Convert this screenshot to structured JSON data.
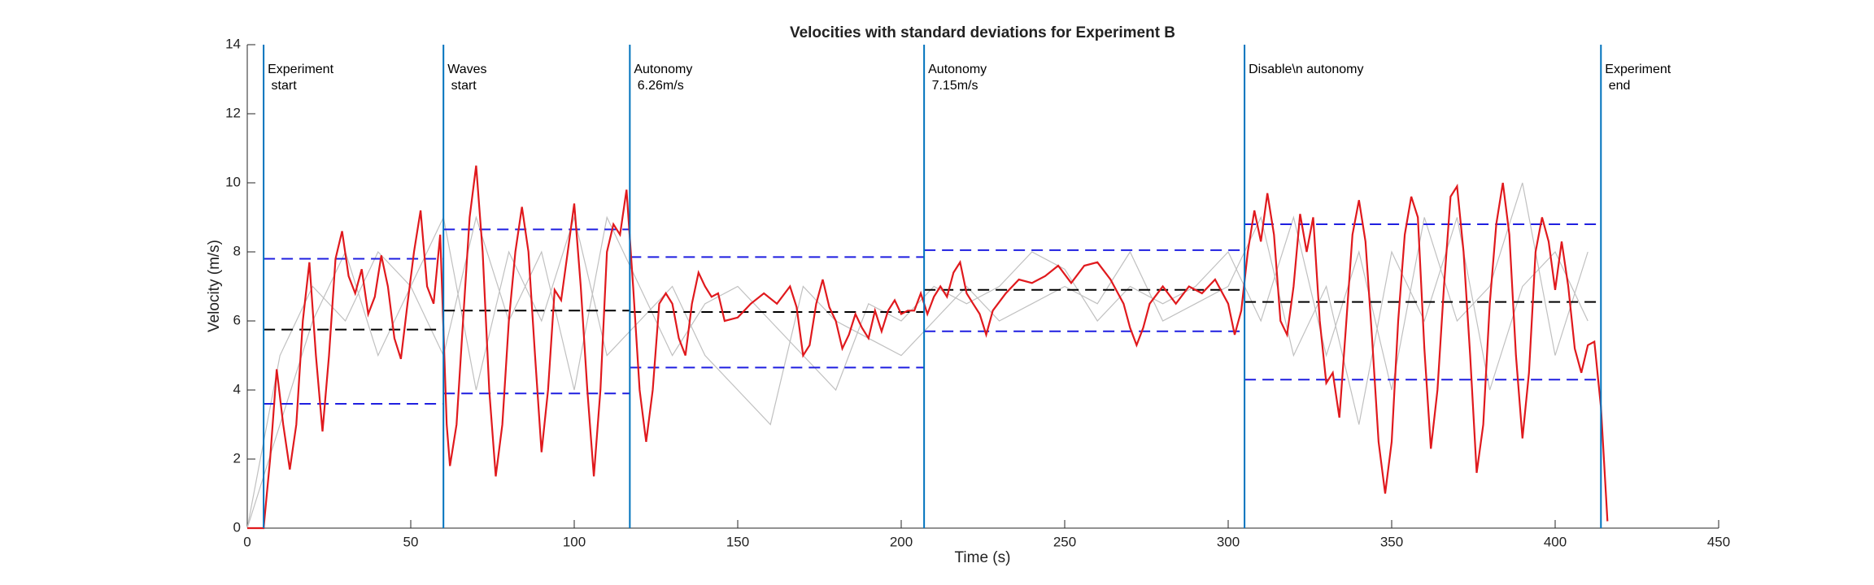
{
  "chart_data": {
    "type": "line",
    "title": "Velocities with standard deviations for Experiment B",
    "xlabel": "Time (s)",
    "ylabel": "Velocity (m/s)",
    "xlim": [
      0,
      450
    ],
    "ylim": [
      0,
      14
    ],
    "xticks": [
      0,
      50,
      100,
      150,
      200,
      250,
      300,
      350,
      400,
      450
    ],
    "yticks": [
      0,
      2,
      4,
      6,
      8,
      10,
      12,
      14
    ],
    "series": [
      {
        "color": "#e0191d",
        "x": [
          0,
          5,
          7,
          9,
          11,
          13,
          15,
          17,
          19,
          21,
          23,
          25,
          27,
          29,
          31,
          33,
          35,
          37,
          39,
          41,
          43,
          45,
          47,
          49,
          51,
          53,
          55,
          57,
          59,
          61,
          62,
          64,
          66,
          68,
          70,
          72,
          74,
          76,
          78,
          80,
          82,
          84,
          86,
          88,
          90,
          92,
          94,
          96,
          98,
          100,
          102,
          104,
          106,
          108,
          110,
          112,
          114,
          116,
          118,
          120,
          122,
          124,
          126,
          128,
          130,
          132,
          134,
          136,
          138,
          140,
          142,
          144,
          146,
          150,
          154,
          158,
          162,
          166,
          168,
          170,
          172,
          174,
          176,
          178,
          180,
          182,
          184,
          186,
          188,
          190,
          192,
          194,
          196,
          198,
          200,
          202,
          204,
          206,
          208,
          210,
          212,
          214,
          216,
          218,
          220,
          222,
          224,
          226,
          228,
          232,
          236,
          240,
          244,
          248,
          252,
          256,
          260,
          264,
          268,
          270,
          272,
          274,
          276,
          280,
          284,
          288,
          292,
          296,
          300,
          302,
          304,
          306,
          308,
          310,
          312,
          314,
          316,
          318,
          320,
          322,
          324,
          326,
          328,
          330,
          332,
          334,
          336,
          338,
          340,
          342,
          344,
          346,
          348,
          350,
          352,
          354,
          356,
          358,
          360,
          362,
          364,
          366,
          368,
          370,
          372,
          374,
          376,
          378,
          380,
          382,
          384,
          386,
          388,
          390,
          392,
          394,
          396,
          398,
          400,
          402,
          404,
          406,
          408,
          410,
          412,
          414,
          416
        ],
        "values": [
          0,
          0,
          2,
          4.6,
          3,
          1.7,
          3,
          6,
          7.7,
          5,
          2.8,
          5,
          7.8,
          8.6,
          7.3,
          6.8,
          7.5,
          6.2,
          6.7,
          7.9,
          7,
          5.5,
          4.9,
          6.5,
          8,
          9.2,
          7,
          6.5,
          8.5,
          3,
          1.8,
          3,
          6,
          9,
          10.5,
          8,
          4,
          1.5,
          3,
          6,
          8,
          9.3,
          8,
          5,
          2.2,
          4,
          6.9,
          6.6,
          8,
          9.4,
          7,
          4,
          1.5,
          4,
          8,
          8.8,
          8.5,
          9.8,
          7,
          4,
          2.5,
          4,
          6.5,
          6.8,
          6.5,
          5.5,
          5,
          6.5,
          7.4,
          7,
          6.7,
          6.8,
          6,
          6.1,
          6.5,
          6.8,
          6.5,
          7,
          6.4,
          5,
          5.3,
          6.5,
          7.2,
          6.4,
          6,
          5.2,
          5.6,
          6.2,
          5.8,
          5.5,
          6.3,
          5.7,
          6.3,
          6.6,
          6.2,
          6.3,
          6.3,
          6.8,
          6.2,
          6.7,
          7,
          6.7,
          7.4,
          7.7,
          6.8,
          6.5,
          6.2,
          5.6,
          6.3,
          6.8,
          7.2,
          7.1,
          7.3,
          7.6,
          7.1,
          7.6,
          7.7,
          7.2,
          6.5,
          5.8,
          5.3,
          5.8,
          6.5,
          7,
          6.5,
          7,
          6.8,
          7.2,
          6.5,
          5.6,
          6.3,
          8,
          9.2,
          8.3,
          9.7,
          8.5,
          6,
          5.6,
          7,
          9.1,
          8,
          9,
          6,
          4.2,
          4.5,
          3.2,
          5.8,
          8.5,
          9.5,
          8.3,
          5.5,
          2.5,
          1,
          2.5,
          6,
          8.5,
          9.6,
          9,
          5.2,
          2.3,
          4,
          7,
          9.6,
          9.9,
          8,
          5,
          1.6,
          3,
          6.5,
          8.8,
          10,
          8.5,
          5,
          2.6,
          4.5,
          8,
          9,
          8.3,
          6.9,
          8.3,
          7,
          5.2,
          4.5,
          5.3,
          5.4,
          3.5,
          0.2
        ]
      },
      {
        "color": "#c0c0c0",
        "x": [
          0,
          10,
          20,
          30,
          40,
          50,
          60,
          70,
          80,
          90,
          100,
          110,
          120,
          130,
          140,
          150,
          160,
          170,
          180,
          190,
          200,
          210,
          220,
          230,
          240,
          250,
          260,
          270,
          280,
          290,
          300,
          310,
          320,
          330,
          340,
          350,
          360,
          370,
          380,
          390,
          400,
          410
        ],
        "values": [
          0,
          5,
          7,
          6,
          8,
          7,
          5,
          9,
          6,
          8,
          4,
          9,
          7,
          5,
          6.5,
          7,
          6,
          5,
          4,
          6.5,
          6,
          7,
          6.5,
          7,
          8,
          7.5,
          6,
          7,
          6.5,
          7,
          8,
          6,
          9,
          5,
          8,
          4,
          9,
          6,
          7,
          10,
          5,
          8
        ]
      },
      {
        "color": "#c0c0c0",
        "x": [
          0,
          10,
          20,
          30,
          40,
          50,
          60,
          70,
          80,
          90,
          100,
          110,
          120,
          130,
          140,
          150,
          160,
          170,
          180,
          190,
          200,
          210,
          220,
          230,
          240,
          250,
          260,
          270,
          280,
          290,
          300,
          310,
          320,
          330,
          340,
          350,
          360,
          370,
          380,
          390,
          400,
          410
        ],
        "values": [
          0,
          3,
          6,
          8,
          5,
          7,
          9,
          4,
          8,
          6,
          9,
          5,
          6,
          7,
          5,
          4,
          3,
          7,
          6,
          5.5,
          5,
          6,
          7,
          6,
          6.5,
          7,
          6.5,
          8,
          6,
          6.5,
          7,
          9,
          5,
          7,
          3,
          8,
          6,
          9,
          4,
          7,
          8,
          6
        ]
      }
    ],
    "segments": [
      {
        "x": [
          5,
          60
        ],
        "mean": 5.75,
        "lower": 3.6,
        "upper": 7.8
      },
      {
        "x": [
          60,
          117
        ],
        "mean": 6.3,
        "lower": 3.9,
        "upper": 8.65
      },
      {
        "x": [
          117,
          207
        ],
        "mean": 6.26,
        "lower": 4.65,
        "upper": 7.85
      },
      {
        "x": [
          207,
          305
        ],
        "mean": 6.9,
        "lower": 5.7,
        "upper": 8.05
      },
      {
        "x": [
          305,
          414
        ],
        "mean": 6.55,
        "lower": 4.3,
        "upper": 8.8
      }
    ],
    "mean_color": "#000000",
    "std_color": "#1f1fe0",
    "event_color": "#0072bd",
    "events": [
      {
        "x": 5,
        "label": "Experiment\n start"
      },
      {
        "x": 60,
        "label": "Waves\n start"
      },
      {
        "x": 117,
        "label": "Autonomy\n 6.26m/s"
      },
      {
        "x": 207,
        "label": "Autonomy\n 7.15m/s"
      },
      {
        "x": 305,
        "label": "Disable\\n autonomy"
      },
      {
        "x": 414,
        "label": "Experiment\n end"
      }
    ]
  }
}
